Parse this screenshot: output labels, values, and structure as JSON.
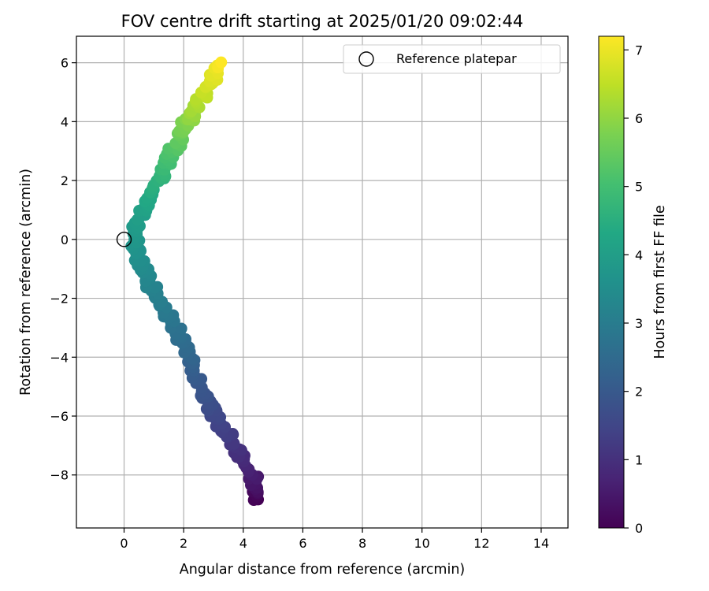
{
  "chart_data": {
    "type": "scatter",
    "title": "FOV centre drift starting at 2025/01/20 09:02:44",
    "xlabel": "Angular distance from reference (arcmin)",
    "ylabel": "Rotation from reference (arcmin)",
    "xlim": [
      -1.6,
      14.9
    ],
    "ylim": [
      -9.8,
      6.9
    ],
    "xticks": [
      0,
      2,
      4,
      6,
      8,
      10,
      12,
      14
    ],
    "yticks": [
      -8,
      -6,
      -4,
      -2,
      0,
      2,
      4,
      6
    ],
    "grid": true,
    "legend": {
      "placement": "top-right",
      "entries": [
        {
          "label": "Reference platepar",
          "marker": "open-circle"
        }
      ]
    },
    "reference_point": {
      "x": 0,
      "y": 0
    },
    "colorbar": {
      "label": "Hours from first FF file",
      "colormap": "viridis",
      "range": [
        0,
        7.2
      ],
      "ticks": [
        0,
        1,
        2,
        3,
        4,
        5,
        6,
        7
      ]
    },
    "point_count": 260,
    "series": [
      {
        "color_by": "hours",
        "points": [
          {
            "x": 4.5,
            "y": -8.85,
            "hours": 0.0
          },
          {
            "x": 4.4,
            "y": -8.3,
            "hours": 0.4
          },
          {
            "x": 4.1,
            "y": -7.6,
            "hours": 0.8
          },
          {
            "x": 3.7,
            "y": -7.0,
            "hours": 1.1
          },
          {
            "x": 3.3,
            "y": -6.4,
            "hours": 1.4
          },
          {
            "x": 3.0,
            "y": -5.8,
            "hours": 1.6
          },
          {
            "x": 2.7,
            "y": -5.2,
            "hours": 1.85
          },
          {
            "x": 2.4,
            "y": -4.5,
            "hours": 2.1
          },
          {
            "x": 2.1,
            "y": -3.9,
            "hours": 2.4
          },
          {
            "x": 1.8,
            "y": -3.1,
            "hours": 2.65
          },
          {
            "x": 1.4,
            "y": -2.4,
            "hours": 2.9
          },
          {
            "x": 0.9,
            "y": -1.6,
            "hours": 3.2
          },
          {
            "x": 0.6,
            "y": -0.9,
            "hours": 3.45
          },
          {
            "x": 0.4,
            "y": -0.3,
            "hours": 3.65
          },
          {
            "x": 0.4,
            "y": 0.3,
            "hours": 3.85
          },
          {
            "x": 0.6,
            "y": 0.9,
            "hours": 4.05
          },
          {
            "x": 0.9,
            "y": 1.4,
            "hours": 4.3
          },
          {
            "x": 1.2,
            "y": 2.0,
            "hours": 4.6
          },
          {
            "x": 1.5,
            "y": 2.7,
            "hours": 5.0
          },
          {
            "x": 1.8,
            "y": 3.3,
            "hours": 5.4
          },
          {
            "x": 2.1,
            "y": 3.9,
            "hours": 5.8
          },
          {
            "x": 2.5,
            "y": 4.6,
            "hours": 6.3
          },
          {
            "x": 2.8,
            "y": 5.2,
            "hours": 6.7
          },
          {
            "x": 3.1,
            "y": 5.8,
            "hours": 7.0
          },
          {
            "x": 3.15,
            "y": 5.95,
            "hours": 7.2
          }
        ]
      }
    ]
  }
}
